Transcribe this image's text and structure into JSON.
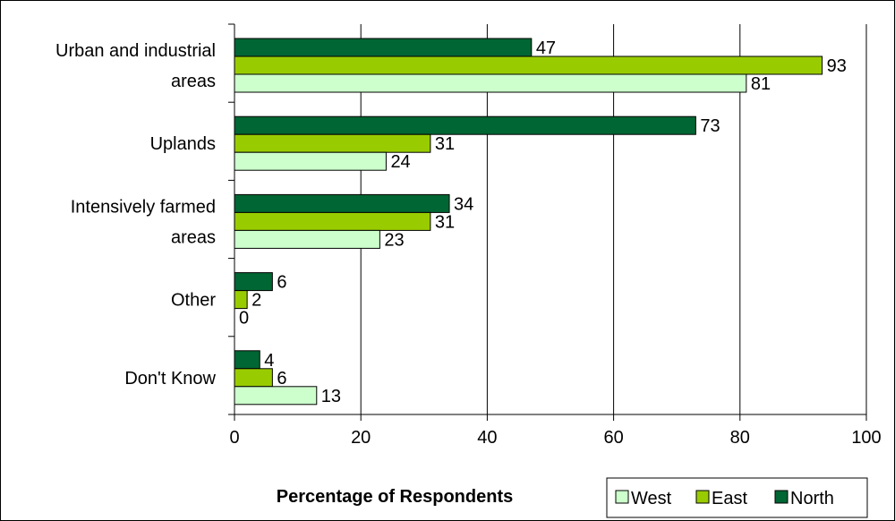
{
  "chart_data": {
    "type": "bar",
    "orientation": "horizontal",
    "categories": [
      [
        "Urban and industrial",
        "areas"
      ],
      [
        "Uplands"
      ],
      [
        "Intensively farmed",
        "areas"
      ],
      [
        "Other"
      ],
      [
        "Don't Know"
      ]
    ],
    "series": [
      {
        "name": "North",
        "color": "#006633",
        "values": [
          47,
          73,
          34,
          6,
          4
        ]
      },
      {
        "name": "East",
        "color": "#99CC00",
        "values": [
          93,
          31,
          31,
          2,
          6
        ]
      },
      {
        "name": "West",
        "color": "#CCFFCC",
        "values": [
          81,
          24,
          23,
          0,
          13
        ]
      }
    ],
    "legend_order": [
      "West",
      "East",
      "North"
    ],
    "legend_position": "bottom-right",
    "xlabel": "Percentage of Respondents",
    "ylabel": "",
    "xlim": [
      0,
      100
    ],
    "xticks": [
      "0",
      "20",
      "40",
      "60",
      "80",
      "100"
    ],
    "grid": "vertical"
  }
}
